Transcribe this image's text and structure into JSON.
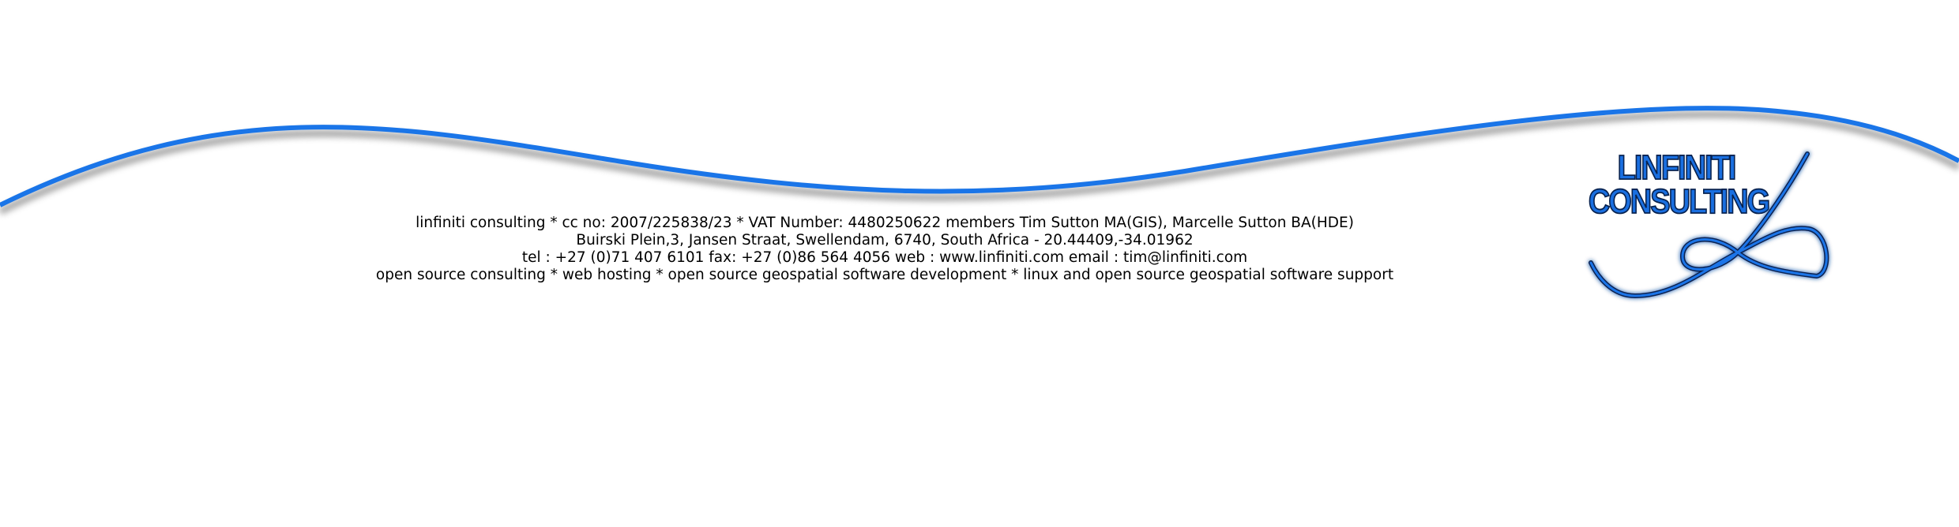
{
  "letterhead": {
    "colors": {
      "wave": "#1a75e8",
      "wave_shadow": "#8a8a8a",
      "logo_fill": "#1a6fe0",
      "logo_stroke": "#08224f",
      "logo_glow": "#9cc6ff",
      "text": "#000000",
      "background": "#ffffff"
    },
    "logo": {
      "line1": "LINFINITI",
      "line2": "CONSULTING",
      "icon": "infinity-loop-icon"
    },
    "footer": {
      "line1": "linfiniti consulting * cc no: 2007/225838/23 * VAT Number: 4480250622 members Tim Sutton MA(GIS), Marcelle Sutton BA(HDE)",
      "line2": "Buirski Plein,3, Jansen Straat, Swellendam, 6740, South Africa - 20.44409,-34.01962",
      "line3": "tel : +27 (0)71 407 6101 fax: +27 (0)86 564 4056 web : www.linfiniti.com  email : tim@linfiniti.com",
      "line4": "open source consulting * web hosting * open source geospatial software development * linux and open source geospatial software support"
    }
  }
}
